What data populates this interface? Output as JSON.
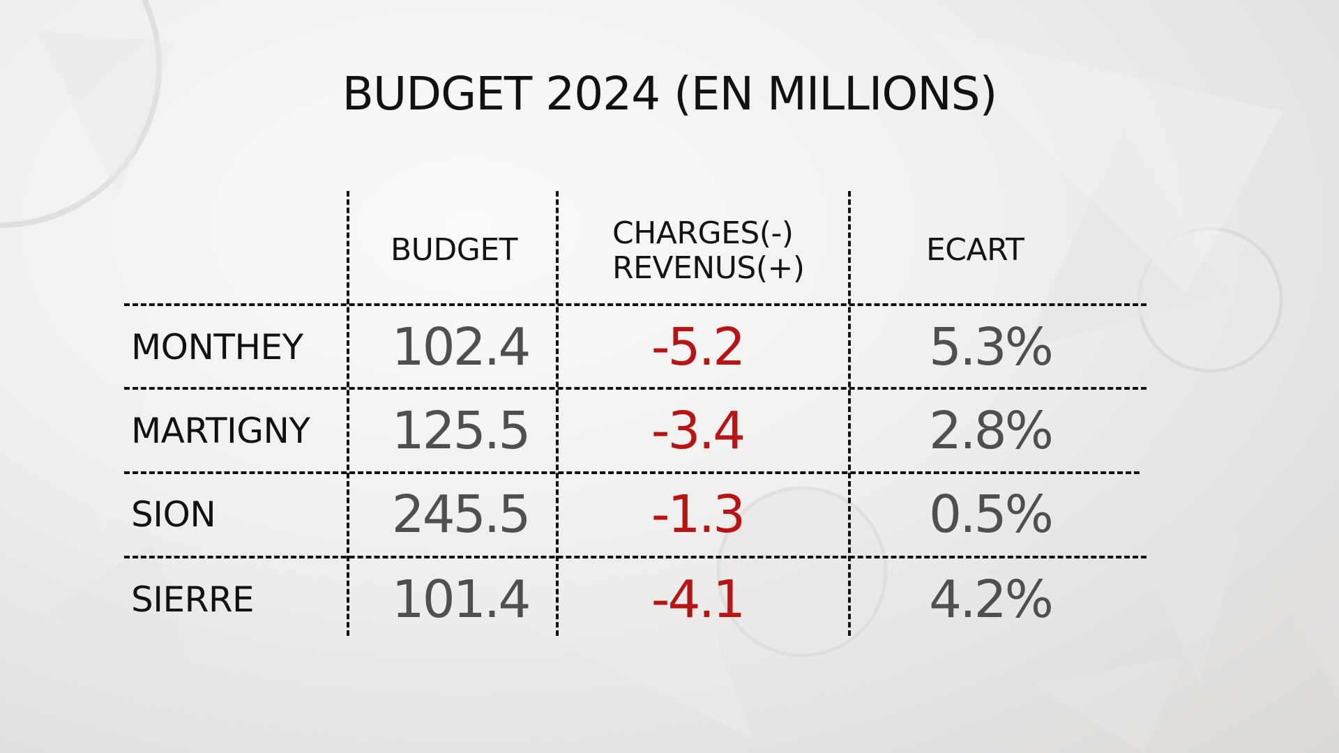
{
  "title": "BUDGET 2024 (EN MILLIONS)",
  "columns": {
    "budget": "BUDGET",
    "charges_line1": "CHARGES(-)",
    "charges_line2": "REVENUS(+)",
    "ecart": "ECART"
  },
  "rows": [
    {
      "city": "MONTHEY",
      "budget": "102.4",
      "charges": "-5.2",
      "ecart": "5.3%"
    },
    {
      "city": "MARTIGNY",
      "budget": "125.5",
      "charges": "-3.4",
      "ecart": "2.8%"
    },
    {
      "city": "SION",
      "budget": "245.5",
      "charges": "-1.3",
      "ecart": "0.5%"
    },
    {
      "city": "SIERRE",
      "budget": "101.4",
      "charges": "-4.1",
      "ecart": "4.2%"
    }
  ],
  "colors": {
    "negative": "#b81414",
    "value": "#4f4f4f",
    "text": "#111111"
  }
}
